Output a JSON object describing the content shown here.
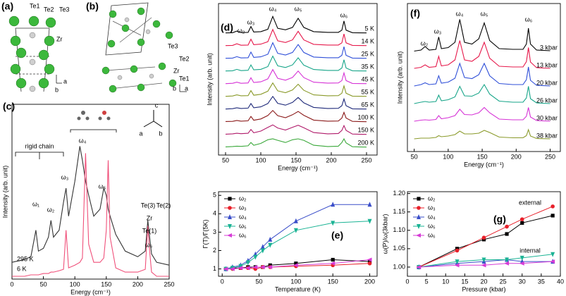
{
  "structures": {
    "a": {
      "panel": "(a)",
      "atoms": [
        "Te1",
        "Te2",
        "Te3",
        "Zr"
      ],
      "axes": [
        "a",
        "b"
      ]
    },
    "b": {
      "panel": "(b)",
      "atoms": [
        "Te3",
        "Te2",
        "Zr",
        "Te1"
      ],
      "axes": [
        "a",
        "b"
      ]
    }
  },
  "chart_data": [
    {
      "type": "line",
      "panel": "(c)",
      "xlabel": "Energy (cm⁻¹)",
      "ylabel": "Intensity (arb. unit)",
      "x": [
        0,
        10,
        20,
        30,
        38,
        42,
        50,
        58,
        62,
        66,
        75,
        82,
        86,
        90,
        100,
        108,
        112,
        117,
        122,
        130,
        140,
        146,
        150,
        153,
        156,
        165,
        180,
        200,
        212,
        216,
        219,
        222,
        230,
        250
      ],
      "xlim": [
        0,
        250
      ],
      "xticks": [
        0,
        50,
        100,
        150,
        200,
        250
      ],
      "ylim": [
        0,
        1.25
      ],
      "legend": "lower left",
      "series": [
        {
          "name": "295 K",
          "color": "#333333",
          "values": [
            0.12,
            0.13,
            0.14,
            0.16,
            0.35,
            0.2,
            0.22,
            0.3,
            0.42,
            0.3,
            0.35,
            0.55,
            0.65,
            0.45,
            0.7,
            0.95,
            0.85,
            0.7,
            0.6,
            0.45,
            0.5,
            0.65,
            0.6,
            0.5,
            0.45,
            0.32,
            0.2,
            0.16,
            0.2,
            0.42,
            0.3,
            0.18,
            0.12,
            0.1
          ]
        },
        {
          "name": "6 K",
          "color": "#f0507a",
          "values": [
            0.02,
            0.02,
            0.02,
            0.03,
            0.03,
            0.03,
            0.04,
            0.04,
            0.05,
            0.05,
            0.06,
            0.07,
            0.35,
            0.08,
            0.1,
            0.12,
            0.15,
            0.9,
            0.25,
            0.12,
            0.12,
            0.15,
            0.35,
            0.85,
            0.3,
            0.08,
            0.05,
            0.05,
            0.07,
            0.38,
            0.2,
            0.05,
            0.02,
            0.02
          ]
        }
      ],
      "annotations": [
        "rigid chain",
        "ω₁",
        "ω₂",
        "ω₃",
        "ω₄",
        "ω₅",
        "ω₆",
        "Te(3)",
        "Te(2)",
        "Zr",
        "Te(1)",
        "a",
        "b",
        "c"
      ]
    },
    {
      "type": "line",
      "panel": "(d)",
      "xlabel": "Energy (cm⁻¹)",
      "ylabel": "Intensity (arb. unit)",
      "offset": true,
      "x": [
        50,
        60,
        66,
        72,
        82,
        86,
        90,
        100,
        110,
        117,
        124,
        135,
        145,
        153,
        161,
        175,
        195,
        210,
        215,
        218,
        221,
        230,
        250
      ],
      "xlim": [
        40,
        265
      ],
      "xticks": [
        50,
        100,
        150,
        200,
        250
      ],
      "ylim": [
        0,
        1
      ],
      "legend": "right",
      "series": [
        {
          "name": "5 K",
          "color": "#000000",
          "values": [
            0.05,
            0.06,
            0.15,
            0.07,
            0.08,
            0.4,
            0.1,
            0.12,
            0.25,
            0.95,
            0.3,
            0.22,
            0.35,
            0.85,
            0.35,
            0.12,
            0.08,
            0.08,
            0.2,
            0.7,
            0.2,
            0.06,
            0.05
          ]
        },
        {
          "name": "14 K",
          "color": "#e6194b",
          "values": [
            0.05,
            0.06,
            0.15,
            0.07,
            0.08,
            0.4,
            0.1,
            0.13,
            0.26,
            0.93,
            0.31,
            0.22,
            0.36,
            0.83,
            0.36,
            0.12,
            0.08,
            0.08,
            0.2,
            0.69,
            0.2,
            0.06,
            0.05
          ]
        },
        {
          "name": "25 K",
          "color": "#2f4fd8",
          "values": [
            0.05,
            0.06,
            0.14,
            0.07,
            0.08,
            0.39,
            0.1,
            0.13,
            0.27,
            0.9,
            0.32,
            0.23,
            0.37,
            0.8,
            0.37,
            0.12,
            0.08,
            0.08,
            0.21,
            0.68,
            0.21,
            0.06,
            0.05
          ]
        },
        {
          "name": "35 K",
          "color": "#17a589",
          "values": [
            0.05,
            0.06,
            0.14,
            0.07,
            0.09,
            0.38,
            0.11,
            0.14,
            0.29,
            0.86,
            0.33,
            0.24,
            0.38,
            0.77,
            0.37,
            0.13,
            0.08,
            0.08,
            0.21,
            0.66,
            0.21,
            0.06,
            0.05
          ]
        },
        {
          "name": "45 K",
          "color": "#d633d6",
          "values": [
            0.05,
            0.07,
            0.13,
            0.07,
            0.09,
            0.37,
            0.11,
            0.15,
            0.31,
            0.82,
            0.34,
            0.24,
            0.39,
            0.74,
            0.38,
            0.13,
            0.08,
            0.09,
            0.22,
            0.64,
            0.22,
            0.06,
            0.05
          ]
        },
        {
          "name": "55 K",
          "color": "#8a9a2a",
          "values": [
            0.05,
            0.07,
            0.13,
            0.08,
            0.09,
            0.36,
            0.11,
            0.16,
            0.33,
            0.78,
            0.35,
            0.25,
            0.4,
            0.71,
            0.38,
            0.13,
            0.08,
            0.09,
            0.22,
            0.62,
            0.22,
            0.06,
            0.05
          ]
        },
        {
          "name": "65 K",
          "color": "#1f2a7a",
          "values": [
            0.05,
            0.07,
            0.12,
            0.08,
            0.1,
            0.35,
            0.12,
            0.17,
            0.35,
            0.74,
            0.36,
            0.26,
            0.41,
            0.68,
            0.39,
            0.14,
            0.08,
            0.09,
            0.23,
            0.6,
            0.23,
            0.06,
            0.05
          ]
        },
        {
          "name": "100 K",
          "color": "#8b1a1a",
          "values": [
            0.06,
            0.07,
            0.12,
            0.08,
            0.1,
            0.34,
            0.13,
            0.2,
            0.39,
            0.66,
            0.38,
            0.27,
            0.43,
            0.61,
            0.4,
            0.14,
            0.08,
            0.09,
            0.25,
            0.56,
            0.25,
            0.07,
            0.05
          ]
        },
        {
          "name": "150 K",
          "color": "#b01a6a",
          "values": [
            0.06,
            0.08,
            0.11,
            0.09,
            0.11,
            0.32,
            0.14,
            0.23,
            0.43,
            0.57,
            0.4,
            0.29,
            0.44,
            0.55,
            0.41,
            0.15,
            0.08,
            0.1,
            0.27,
            0.53,
            0.27,
            0.07,
            0.05
          ]
        },
        {
          "name": "200 K",
          "color": "#3aa83a",
          "values": [
            0.06,
            0.08,
            0.1,
            0.09,
            0.12,
            0.3,
            0.15,
            0.25,
            0.45,
            0.5,
            0.42,
            0.3,
            0.45,
            0.5,
            0.42,
            0.15,
            0.08,
            0.1,
            0.3,
            0.5,
            0.28,
            0.07,
            0.05
          ]
        }
      ],
      "annotations": [
        "ω₂",
        "ω₃",
        "ω₄",
        "ω₅",
        "ω₆"
      ]
    },
    {
      "type": "line",
      "panel": "(e)",
      "xlabel": "Temperature (K)",
      "ylabel": "Γ(T)/Γ(5K)",
      "x": [
        5,
        14,
        25,
        35,
        45,
        55,
        65,
        100,
        150,
        200
      ],
      "xlim": [
        -5,
        210
      ],
      "xticks": [
        0,
        50,
        100,
        150,
        200
      ],
      "ylim": [
        0.6,
        5.2
      ],
      "yticks": [
        1,
        2,
        3,
        4,
        5
      ],
      "legend": "upper left",
      "series": [
        {
          "name": "ω₂",
          "color": "#000000",
          "marker": "square",
          "values": [
            1,
            1.05,
            1.05,
            1.1,
            1.1,
            1.1,
            1.2,
            1.3,
            1.5,
            1.4
          ]
        },
        {
          "name": "ω₃",
          "color": "#e8202a",
          "marker": "circle",
          "values": [
            1,
            1,
            1.05,
            1.05,
            1.0,
            1.1,
            1.1,
            1.15,
            1.2,
            1.3
          ]
        },
        {
          "name": "ω₄",
          "color": "#3a4ec9",
          "marker": "triangle-up",
          "values": [
            1,
            1.1,
            1.2,
            1.45,
            1.8,
            2.2,
            2.6,
            3.6,
            4.5,
            4.5
          ]
        },
        {
          "name": "ω₅",
          "color": "#1ab394",
          "marker": "triangle-down",
          "values": [
            1,
            1.05,
            1.15,
            1.35,
            1.65,
            2.0,
            2.3,
            3.1,
            3.5,
            3.6
          ]
        },
        {
          "name": "ω₆",
          "color": "#d63cd6",
          "marker": "triangle-left",
          "values": [
            1,
            1,
            1.05,
            1.05,
            1.1,
            1.1,
            1.1,
            1.2,
            1.3,
            1.5
          ]
        }
      ]
    },
    {
      "type": "line",
      "panel": "(f)",
      "xlabel": "Energy (cm⁻¹)",
      "ylabel": "Intensity (arb. unit)",
      "offset": true,
      "x": [
        50,
        60,
        66,
        72,
        82,
        86,
        90,
        100,
        110,
        117,
        124,
        135,
        145,
        153,
        161,
        175,
        195,
        210,
        215,
        218,
        221,
        230,
        250
      ],
      "xlim": [
        40,
        265
      ],
      "xticks": [
        50,
        100,
        150,
        200,
        250
      ],
      "ylim": [
        0,
        1
      ],
      "legend": "right",
      "series": [
        {
          "name": "3 kbar",
          "color": "#000000",
          "values": [
            0.05,
            0.08,
            0.18,
            0.08,
            0.1,
            0.45,
            0.12,
            0.15,
            0.3,
            0.95,
            0.3,
            0.25,
            0.4,
            0.85,
            0.35,
            0.12,
            0.1,
            0.1,
            0.25,
            0.7,
            0.25,
            0.08,
            0.06
          ]
        },
        {
          "name": "13 kbar",
          "color": "#e6194b",
          "values": [
            0.06,
            0.09,
            0.16,
            0.09,
            0.11,
            0.4,
            0.13,
            0.16,
            0.3,
            0.85,
            0.3,
            0.26,
            0.4,
            0.8,
            0.35,
            0.12,
            0.1,
            0.1,
            0.25,
            0.65,
            0.24,
            0.08,
            0.06
          ]
        },
        {
          "name": "20 kbar",
          "color": "#2f4fd8",
          "values": [
            0.06,
            0.1,
            0.15,
            0.1,
            0.12,
            0.35,
            0.14,
            0.17,
            0.28,
            0.7,
            0.3,
            0.27,
            0.38,
            0.7,
            0.35,
            0.13,
            0.1,
            0.1,
            0.24,
            0.6,
            0.22,
            0.08,
            0.06
          ]
        },
        {
          "name": "26 kbar",
          "color": "#17a589",
          "values": [
            0.06,
            0.1,
            0.12,
            0.1,
            0.12,
            0.3,
            0.14,
            0.17,
            0.25,
            0.55,
            0.28,
            0.27,
            0.36,
            0.6,
            0.33,
            0.13,
            0.1,
            0.1,
            0.22,
            0.55,
            0.2,
            0.08,
            0.06
          ]
        },
        {
          "name": "30 kbar",
          "color": "#d633d6",
          "values": [
            0.06,
            0.09,
            0.1,
            0.09,
            0.11,
            0.22,
            0.13,
            0.16,
            0.22,
            0.4,
            0.25,
            0.24,
            0.3,
            0.45,
            0.3,
            0.12,
            0.1,
            0.1,
            0.2,
            0.45,
            0.18,
            0.08,
            0.06
          ]
        },
        {
          "name": "38 kbar",
          "color": "#8a9a2a",
          "values": [
            0.06,
            0.08,
            0.08,
            0.08,
            0.1,
            0.15,
            0.12,
            0.14,
            0.18,
            0.28,
            0.2,
            0.2,
            0.22,
            0.3,
            0.24,
            0.11,
            0.09,
            0.09,
            0.15,
            0.32,
            0.14,
            0.07,
            0.06
          ]
        }
      ],
      "annotations": [
        "ω₂",
        "ω₃",
        "ω₄",
        "ω₅",
        "ω₆"
      ]
    },
    {
      "type": "line",
      "panel": "(g)",
      "xlabel": "Pressure (kbar)",
      "ylabel": "ω(P)/ω(3kbar)",
      "x": [
        3,
        13,
        20,
        26,
        30,
        38
      ],
      "xlim": [
        0,
        40
      ],
      "xticks": [
        0,
        5,
        10,
        15,
        20,
        25,
        30,
        35,
        40
      ],
      "ylim": [
        0.975,
        1.205
      ],
      "yticks": [
        {
          "value": 1,
          "label": "1.00"
        },
        {
          "value": 1.05,
          "label": "1.05"
        },
        {
          "value": 1.1,
          "label": "1.10"
        },
        {
          "value": 1.15,
          "label": "1.15"
        },
        {
          "value": 1.2,
          "label": "1.20"
        }
      ],
      "legend": "upper left",
      "series": [
        {
          "name": "ω₂",
          "color": "#000000",
          "marker": "square",
          "values": [
            1,
            1.05,
            1.075,
            1.09,
            1.12,
            1.14
          ]
        },
        {
          "name": "ω₃",
          "color": "#e8202a",
          "marker": "circle",
          "values": [
            1,
            1.045,
            1.08,
            1.11,
            1.13,
            1.165
          ]
        },
        {
          "name": "ω₄",
          "color": "#3a4ec9",
          "marker": "triangle-up",
          "values": [
            1,
            1.01,
            1.015,
            1.02,
            1.015,
            1.015
          ]
        },
        {
          "name": "ω₅",
          "color": "#1ab394",
          "marker": "triangle-down",
          "values": [
            1,
            1.015,
            1.02,
            1.02,
            1.025,
            1.035
          ]
        },
        {
          "name": "ω₆",
          "color": "#d63cd6",
          "marker": "triangle-left",
          "values": [
            1,
            1.005,
            1.005,
            1.01,
            1.01,
            1.015
          ]
        }
      ],
      "annotations": [
        "external",
        "internal"
      ]
    }
  ]
}
